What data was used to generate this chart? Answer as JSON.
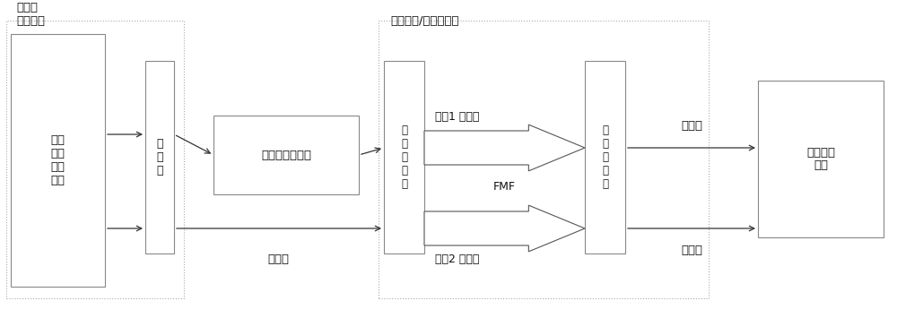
{
  "bg_color": "#ffffff",
  "box_color": "#ffffff",
  "box_edge": "#888888",
  "dashed_border_color": "#aaaaaa",
  "arrow_color": "#333333",
  "text_color": "#111111",
  "label_outer_box1": "光载波\n输入单元",
  "label_outer_box2": "模分复用/解复用单元",
  "block_laser": "多波\n长激\n光器\n阵列",
  "block_coupler": "耦\n合\n器",
  "block_modulator": "光信号调制单元",
  "block_mux1": "模\n式\n复\n用\n器",
  "block_mux2": "模\n式\n复\n用\n器",
  "block_receiver": "相干接收\n单元",
  "label_mode1": "模式1 信号光",
  "label_fmf": "FMF",
  "label_mode2": "模式2 本振光",
  "label_signal_out": "信号光",
  "label_lo_out": "本振光",
  "label_lo_mid": "本振光",
  "fig_w": 10.0,
  "fig_h": 3.55,
  "dpi": 100
}
